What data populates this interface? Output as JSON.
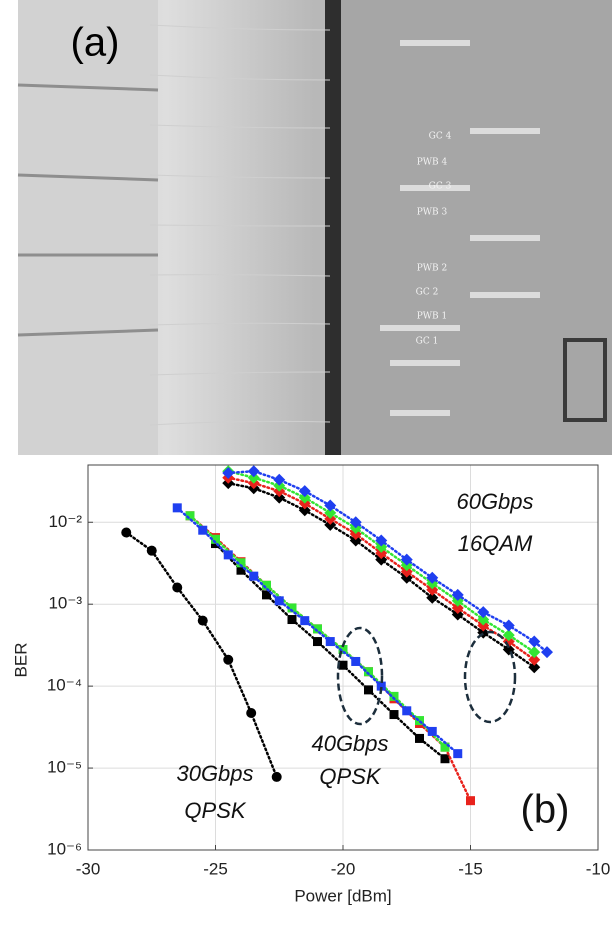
{
  "photo": {
    "label": "(a)",
    "labels": [
      "GC 4",
      "PWB 4",
      "GC 3",
      "PWB 3",
      "PWB 2",
      "GC 2",
      "PWB 1",
      "GC 1"
    ]
  },
  "chart_data": {
    "type": "line",
    "log_y": true,
    "grid": true,
    "xlabel": "Power [dBm]",
    "ylabel": "BER",
    "xlim": [
      -30,
      -10
    ],
    "xticks": [
      -30,
      -25,
      -20,
      -15,
      -10
    ],
    "ylim": [
      1e-06,
      0.05
    ],
    "yticks": [
      {
        "value": 1e-06,
        "label": "10⁻⁶"
      },
      {
        "value": 1e-05,
        "label": "10⁻⁵"
      },
      {
        "value": 0.0001,
        "label": "10⁻⁴"
      },
      {
        "value": 0.001,
        "label": "10⁻³"
      },
      {
        "value": 0.01,
        "label": "10⁻²"
      }
    ],
    "annotations": [
      "30Gbps",
      "QPSK",
      "40Gbps",
      "QPSK",
      "60Gbps",
      "16QAM",
      "(b)"
    ],
    "series": [
      {
        "color": "#000000",
        "marker": "circle",
        "x": [
          -28.5,
          -27.5,
          -26.5,
          -25.5,
          -24.5,
          -23.6,
          -22.6
        ],
        "values": [
          0.0075,
          0.0045,
          0.0016,
          0.00063,
          0.00021,
          4.7e-05,
          7.8e-06
        ]
      },
      {
        "color": "#000000",
        "marker": "square",
        "x": [
          -25,
          -24,
          -23,
          -22,
          -21,
          -20,
          -19,
          -18,
          -17,
          -16
        ],
        "values": [
          0.0055,
          0.0026,
          0.0013,
          0.00065,
          0.00035,
          0.00018,
          9e-05,
          4.5e-05,
          2.3e-05,
          1.3e-05
        ]
      },
      {
        "color": "#e8221c",
        "marker": "square",
        "x": [
          -26,
          -25,
          -24,
          -23,
          -22,
          -21,
          -20,
          -19,
          -18,
          -17,
          -16,
          -15
        ],
        "values": [
          0.012,
          0.0065,
          0.0033,
          0.0017,
          0.0009,
          0.0005,
          0.00028,
          0.00015,
          7e-05,
          3.5e-05,
          1.8e-05,
          4e-06
        ]
      },
      {
        "color": "#33e633",
        "marker": "square",
        "x": [
          -26,
          -25,
          -24,
          -23,
          -22,
          -21,
          -20,
          -19,
          -18,
          -17,
          -16
        ],
        "values": [
          0.012,
          0.0062,
          0.0032,
          0.0017,
          0.0009,
          0.0005,
          0.00028,
          0.00015,
          7.5e-05,
          3.8e-05,
          1.8e-05
        ]
      },
      {
        "color": "#1f3ff0",
        "marker": "square",
        "x": [
          -26.5,
          -25.5,
          -24.5,
          -23.5,
          -22.5,
          -21.5,
          -20.5,
          -19.5,
          -18.5,
          -17.5,
          -16.5,
          -15.5
        ],
        "values": [
          0.015,
          0.008,
          0.004,
          0.0022,
          0.0011,
          0.00063,
          0.00035,
          0.0002,
          0.0001,
          5e-05,
          2.8e-05,
          1.5e-05
        ]
      },
      {
        "color": "#000000",
        "marker": "diamond",
        "x": [
          -24.5,
          -23.5,
          -22.5,
          -21.5,
          -20.5,
          -19.5,
          -18.5,
          -17.5,
          -16.5,
          -15.5,
          -14.5,
          -13.5,
          -12.5
        ],
        "values": [
          0.03,
          0.026,
          0.02,
          0.014,
          0.0093,
          0.006,
          0.0035,
          0.0021,
          0.0012,
          0.00075,
          0.00045,
          0.00028,
          0.00017
        ]
      },
      {
        "color": "#e8221c",
        "marker": "diamond",
        "x": [
          -24.5,
          -23.5,
          -22.5,
          -21.5,
          -20.5,
          -19.5,
          -18.5,
          -17.5,
          -16.5,
          -15.5,
          -14.5,
          -13.5,
          -12.5
        ],
        "values": [
          0.035,
          0.03,
          0.024,
          0.017,
          0.011,
          0.0072,
          0.0042,
          0.0025,
          0.0015,
          0.0009,
          0.00055,
          0.00035,
          0.00021
        ]
      },
      {
        "color": "#33e633",
        "marker": "diamond",
        "x": [
          -24.5,
          -23.5,
          -22.5,
          -21.5,
          -20.5,
          -19.5,
          -18.5,
          -17.5,
          -16.5,
          -15.5,
          -14.5,
          -13.5,
          -12.5
        ],
        "values": [
          0.042,
          0.035,
          0.028,
          0.02,
          0.013,
          0.0085,
          0.005,
          0.003,
          0.0018,
          0.0011,
          0.00065,
          0.00042,
          0.00026
        ]
      },
      {
        "color": "#1f3ff0",
        "marker": "diamond",
        "x": [
          -24.5,
          -23.5,
          -22.5,
          -21.5,
          -20.5,
          -19.5,
          -18.5,
          -17.5,
          -16.5,
          -15.5,
          -14.5,
          -13.5,
          -12.5,
          -12
        ],
        "values": [
          0.04,
          0.042,
          0.033,
          0.024,
          0.016,
          0.01,
          0.006,
          0.0035,
          0.0021,
          0.0013,
          0.0008,
          0.00055,
          0.00035,
          0.00026
        ]
      }
    ]
  }
}
